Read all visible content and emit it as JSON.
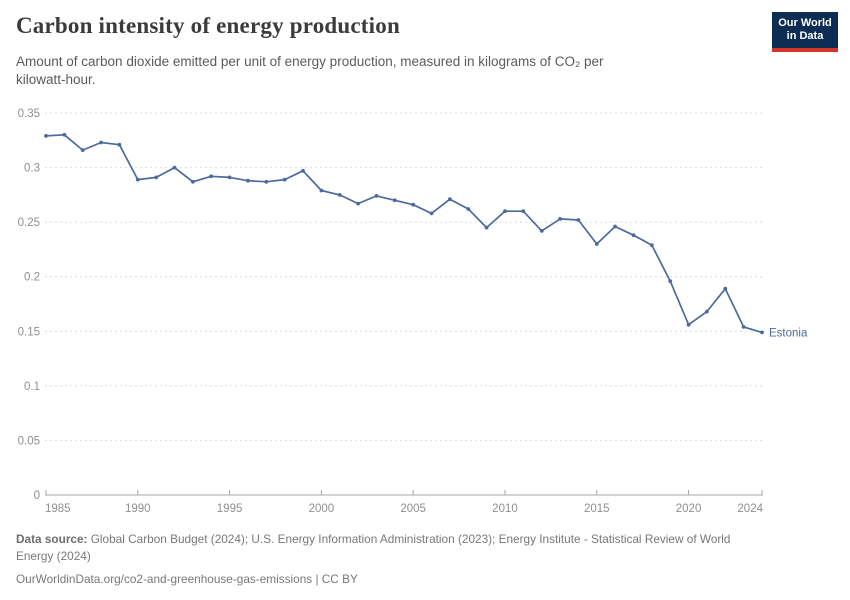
{
  "header": {
    "title": "Carbon intensity of energy production",
    "subtitle_line1": "Amount of carbon dioxide emitted per unit of energy production, measured in kilograms of CO₂ per",
    "subtitle_line2": "kilowatt-hour."
  },
  "logo": {
    "line1": "Our World",
    "line2": "in Data",
    "bg_color": "#0d2e52",
    "accent_color": "#d4342a"
  },
  "chart_data": {
    "type": "line",
    "title": "Carbon intensity of energy production",
    "unit": "kilograms of CO₂ per kilowatt-hour",
    "xlabel": "",
    "ylabel": "",
    "x": [
      1985,
      1986,
      1987,
      1988,
      1989,
      1990,
      1991,
      1992,
      1993,
      1994,
      1995,
      1996,
      1997,
      1998,
      1999,
      2000,
      2001,
      2002,
      2003,
      2004,
      2005,
      2006,
      2007,
      2008,
      2009,
      2010,
      2011,
      2012,
      2013,
      2014,
      2015,
      2016,
      2017,
      2018,
      2019,
      2020,
      2021,
      2022,
      2023,
      2024
    ],
    "series": [
      {
        "name": "Estonia",
        "color": "#4C6A9C",
        "values": [
          0.329,
          0.33,
          0.316,
          0.323,
          0.321,
          0.289,
          0.291,
          0.3,
          0.287,
          0.292,
          0.291,
          0.288,
          0.287,
          0.289,
          0.297,
          0.279,
          0.275,
          0.267,
          0.274,
          0.27,
          0.266,
          0.258,
          0.271,
          0.262,
          0.245,
          0.26,
          0.26,
          0.242,
          0.253,
          0.252,
          0.23,
          0.246,
          0.238,
          0.229,
          0.196,
          0.156,
          0.168,
          0.189,
          0.154,
          0.149
        ]
      }
    ],
    "xticks": [
      1985,
      1990,
      1995,
      2000,
      2005,
      2010,
      2015,
      2020,
      2024
    ],
    "yticks": [
      0,
      0.05,
      0.1,
      0.15,
      0.2,
      0.25,
      0.3,
      0.35
    ],
    "xlim": [
      1985,
      2024
    ],
    "ylim": [
      0,
      0.35
    ],
    "grid": "horizontal-dashed",
    "legend_position": "end-of-line-label"
  },
  "footer": {
    "datasource_label": "Data source:",
    "datasource_line1_rest": " Global Carbon Budget (2024); U.S. Energy Information Administration (2023); Energy Institute - Statistical Review of World",
    "datasource_line2": "Energy (2024)",
    "link_text": "OurWorldinData.org/co2-and-greenhouse-gas-emissions | CC BY"
  },
  "colors": {
    "line": "#4C6A9C",
    "axis": "#a5a5a5",
    "grid": "#dcdcdc",
    "tick_label": "#8f8f8f",
    "title": "#3b3b3b",
    "subtitle": "#5b5b5b",
    "footer": "#787878"
  }
}
